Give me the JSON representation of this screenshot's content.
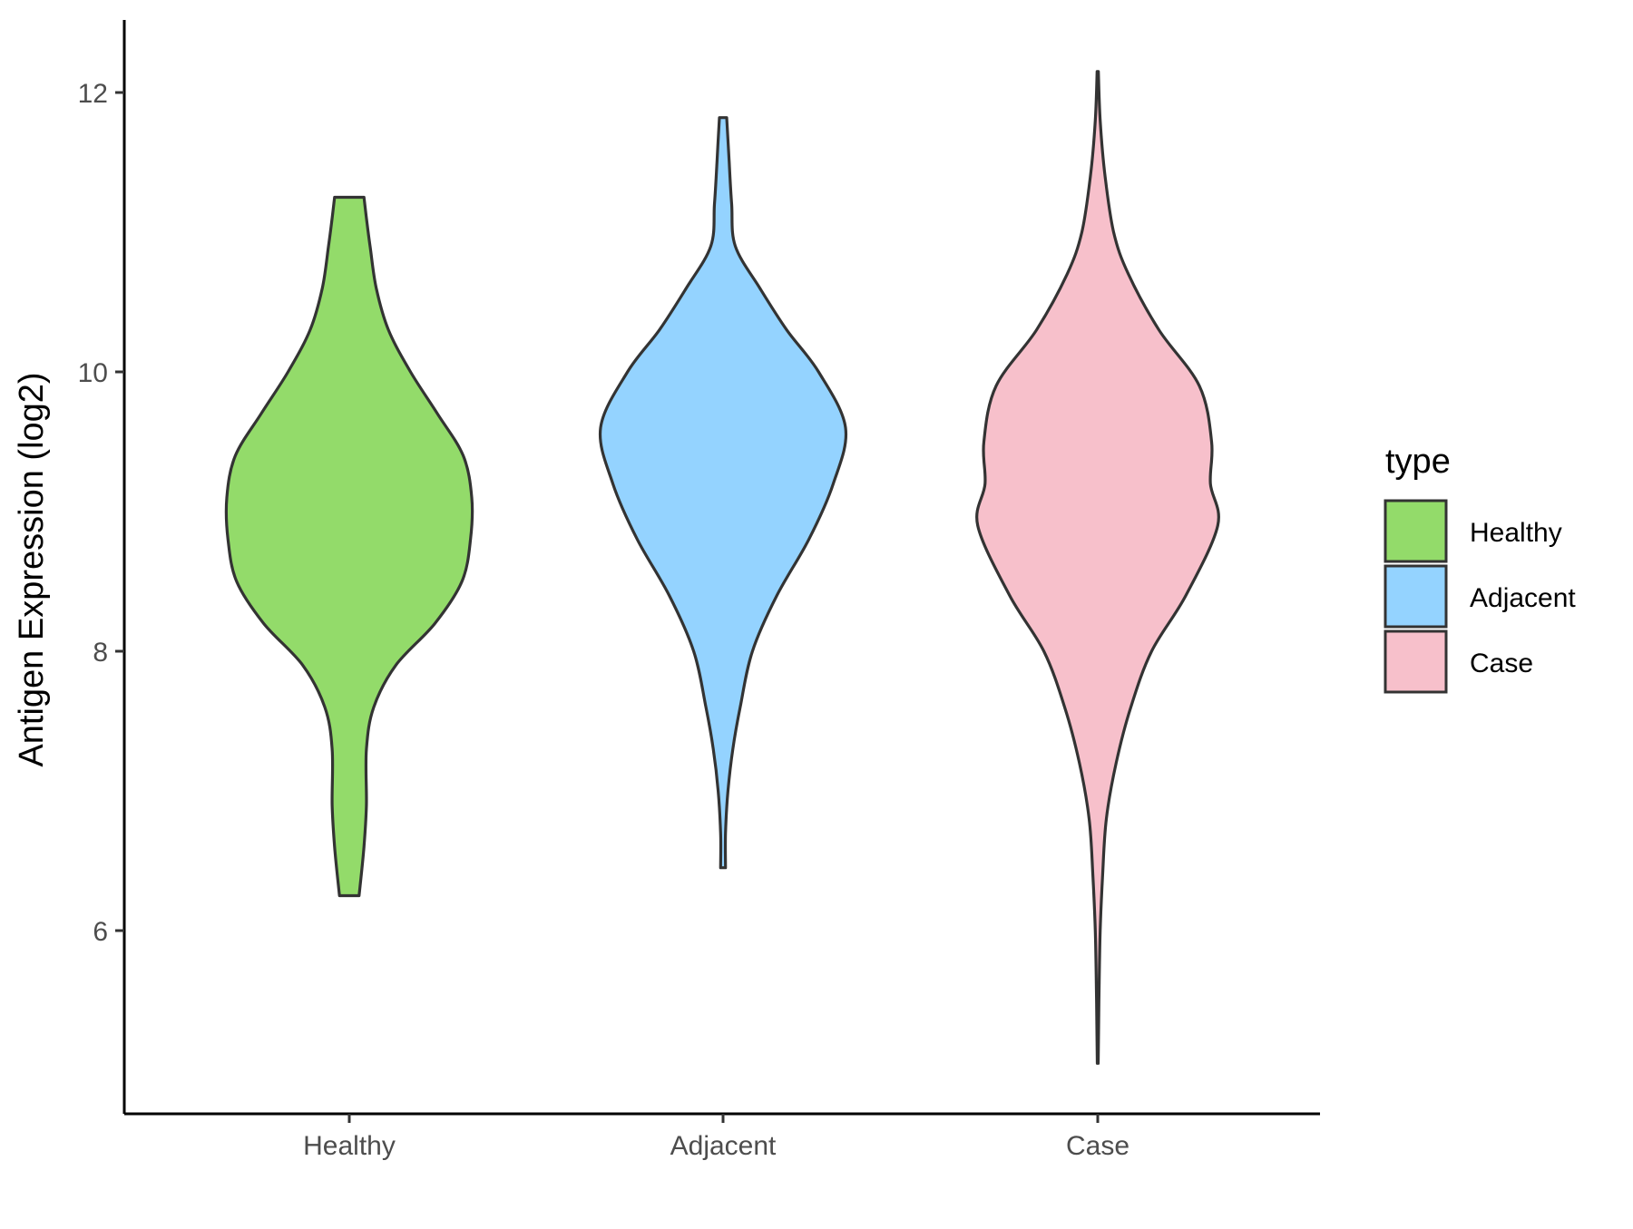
{
  "chart_data": {
    "type": "violin",
    "title": "",
    "xlabel": "",
    "ylabel": "Antigen Expression (log2)",
    "ylim": [
      4.8,
      12.5
    ],
    "y_ticks": [
      6,
      8,
      10,
      12
    ],
    "grid": false,
    "legend": {
      "title": "type",
      "placement": "right",
      "entries": [
        "Healthy",
        "Adjacent",
        "Case"
      ]
    },
    "categories": [
      "Healthy",
      "Adjacent",
      "Case"
    ],
    "series": [
      {
        "name": "Healthy",
        "color": "#93DB6A",
        "min": 6.25,
        "max": 11.25,
        "density": [
          [
            6.25,
            0.08
          ],
          [
            6.6,
            0.12
          ],
          [
            6.9,
            0.14
          ],
          [
            7.3,
            0.14
          ],
          [
            7.6,
            0.2
          ],
          [
            7.9,
            0.38
          ],
          [
            8.2,
            0.7
          ],
          [
            8.5,
            0.92
          ],
          [
            8.8,
            0.99
          ],
          [
            9.1,
            1.0
          ],
          [
            9.4,
            0.93
          ],
          [
            9.7,
            0.72
          ],
          [
            10.0,
            0.5
          ],
          [
            10.3,
            0.32
          ],
          [
            10.6,
            0.22
          ],
          [
            10.9,
            0.17
          ],
          [
            11.1,
            0.14
          ],
          [
            11.25,
            0.12
          ]
        ]
      },
      {
        "name": "Adjacent",
        "color": "#94D3FF",
        "min": 6.45,
        "max": 11.82,
        "density": [
          [
            6.45,
            0.02
          ],
          [
            6.7,
            0.02
          ],
          [
            7.0,
            0.04
          ],
          [
            7.3,
            0.08
          ],
          [
            7.6,
            0.14
          ],
          [
            8.0,
            0.24
          ],
          [
            8.4,
            0.44
          ],
          [
            8.8,
            0.7
          ],
          [
            9.2,
            0.9
          ],
          [
            9.6,
            1.0
          ],
          [
            10.0,
            0.78
          ],
          [
            10.3,
            0.52
          ],
          [
            10.6,
            0.3
          ],
          [
            10.9,
            0.1
          ],
          [
            11.2,
            0.07
          ],
          [
            11.5,
            0.05
          ],
          [
            11.82,
            0.03
          ]
        ]
      },
      {
        "name": "Case",
        "color": "#F7C0CB",
        "min": 5.05,
        "max": 12.15,
        "density": [
          [
            5.05,
            0.004
          ],
          [
            5.5,
            0.01
          ],
          [
            6.0,
            0.02
          ],
          [
            6.4,
            0.04
          ],
          [
            6.8,
            0.07
          ],
          [
            7.2,
            0.15
          ],
          [
            7.6,
            0.27
          ],
          [
            8.0,
            0.44
          ],
          [
            8.4,
            0.72
          ],
          [
            8.9,
            0.98
          ],
          [
            9.2,
            0.92
          ],
          [
            9.5,
            0.93
          ],
          [
            9.9,
            0.83
          ],
          [
            10.3,
            0.5
          ],
          [
            10.7,
            0.25
          ],
          [
            11.0,
            0.13
          ],
          [
            11.4,
            0.06
          ],
          [
            11.8,
            0.02
          ],
          [
            12.15,
            0.005
          ]
        ]
      }
    ]
  }
}
